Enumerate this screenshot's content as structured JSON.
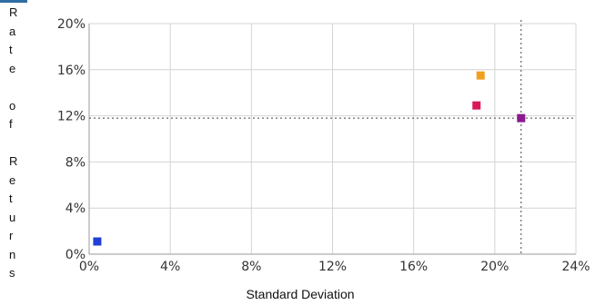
{
  "chart_data": {
    "type": "scatter",
    "title": "",
    "xlabel": "Standard Deviation",
    "ylabel": "Rate of Returns",
    "xlim": [
      0,
      24
    ],
    "ylim": [
      0,
      20
    ],
    "x_ticks": [
      "0%",
      "4%",
      "8%",
      "12%",
      "16%",
      "20%",
      "24%"
    ],
    "y_ticks": [
      "0%",
      "4%",
      "8%",
      "12%",
      "16%",
      "20%"
    ],
    "grid": true,
    "points": [
      {
        "x": 0.4,
        "y": 1.1,
        "color": "#1f3fd6"
      },
      {
        "x": 19.3,
        "y": 15.5,
        "color": "#f0a020"
      },
      {
        "x": 19.1,
        "y": 12.9,
        "color": "#d8185a"
      },
      {
        "x": 21.3,
        "y": 11.8,
        "color": "#8a1a8f"
      }
    ],
    "reference_lines": {
      "x": 21.3,
      "y": 11.8
    }
  }
}
